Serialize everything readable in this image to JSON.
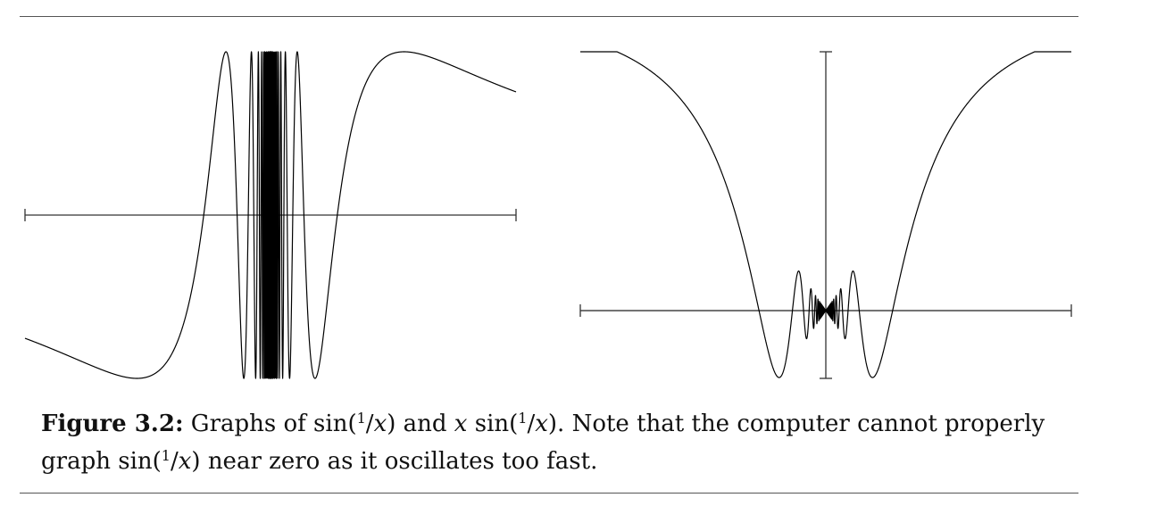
{
  "chart_data": [
    {
      "type": "line",
      "function": "sin(1/x)",
      "xlim": [
        -1.17,
        1.17
      ],
      "ylim": [
        -1,
        1
      ],
      "samples": 6000,
      "axes": {
        "x_axis": true,
        "y_axis": false
      },
      "title": "",
      "xlabel": "",
      "ylabel": ""
    },
    {
      "type": "line",
      "function": "x sin(1/x)",
      "xlim": [
        -1.17,
        1.17
      ],
      "ylim": [
        -0.22,
        0.84
      ],
      "samples": 6000,
      "axes": {
        "x_axis": true,
        "y_axis": true
      },
      "title": "",
      "xlabel": "",
      "ylabel": ""
    }
  ],
  "caption": {
    "label": "Figure 3.2:",
    "parts": {
      "a": " Graphs of sin(",
      "b": "/",
      "c": ") and ",
      "d": " sin(",
      "e": "/",
      "f": "). Note that the computer cannot properly graph sin(",
      "g": "/",
      "h": ") near zero as it oscillates too fast."
    },
    "one": "1",
    "var": "x"
  }
}
